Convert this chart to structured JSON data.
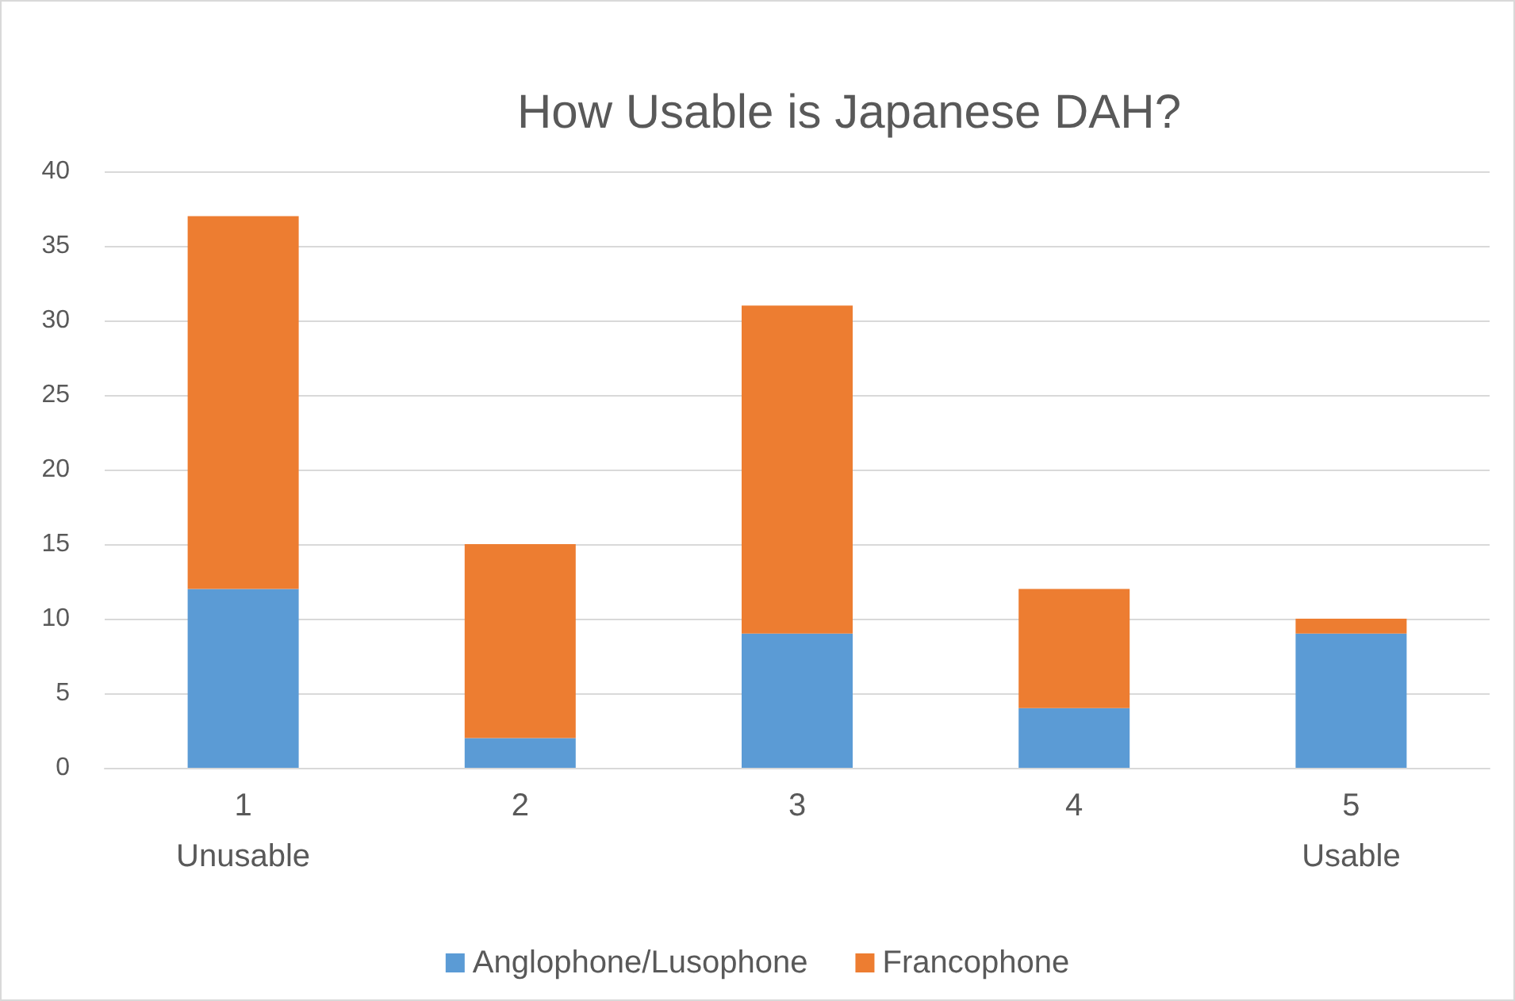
{
  "chart_data": {
    "type": "bar",
    "title": "How Usable is Japanese DAH?",
    "categories": [
      "1\nUnusable",
      "2",
      "3",
      "4",
      "5\nUsable"
    ],
    "series": [
      {
        "name": "Anglophone/Lusophone",
        "color": "#5b9bd5",
        "values": [
          12,
          2,
          9,
          4,
          9
        ]
      },
      {
        "name": "Francophone",
        "color": "#ed7d31",
        "values": [
          25,
          13,
          22,
          8,
          1
        ]
      }
    ],
    "stacked": true,
    "ylim": [
      0,
      40
    ],
    "yticks": [
      0,
      5,
      10,
      15,
      20,
      25,
      30,
      35,
      40
    ],
    "grid": "y",
    "legend": "bottom"
  }
}
